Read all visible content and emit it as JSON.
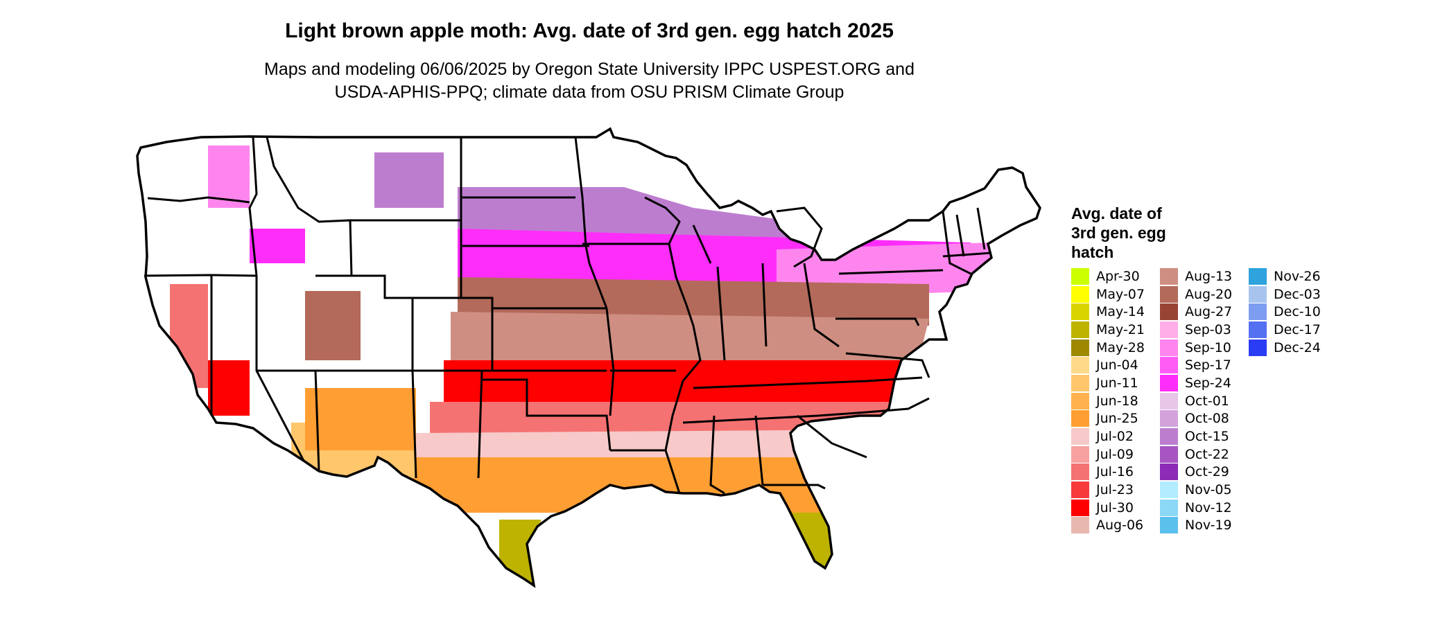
{
  "title": "Light brown apple moth: Avg. date of 3rd gen. egg hatch 2025",
  "subtitle": [
    "Maps and modeling 06/06/2025 by Oregon State University IPPC USPEST.ORG and",
    "USDA-APHIS-PPQ; climate data from OSU PRISM Climate Group"
  ],
  "legend": {
    "title": [
      "Avg. date of",
      "3rd gen. egg",
      "hatch"
    ],
    "items": [
      {
        "label": "Apr-30",
        "color": "#ccff00"
      },
      {
        "label": "May-07",
        "color": "#ffff00"
      },
      {
        "label": "May-14",
        "color": "#d9d400"
      },
      {
        "label": "May-21",
        "color": "#bdb300"
      },
      {
        "label": "May-28",
        "color": "#9e8800"
      },
      {
        "label": "Jun-04",
        "color": "#ffd98a"
      },
      {
        "label": "Jun-11",
        "color": "#ffc66b"
      },
      {
        "label": "Jun-18",
        "color": "#ffb24d"
      },
      {
        "label": "Jun-25",
        "color": "#ff9e33"
      },
      {
        "label": "Jul-02",
        "color": "#f7c9c9"
      },
      {
        "label": "Jul-09",
        "color": "#f7a1a1"
      },
      {
        "label": "Jul-16",
        "color": "#f57272"
      },
      {
        "label": "Jul-23",
        "color": "#f73b3b"
      },
      {
        "label": "Jul-30",
        "color": "#ff0000"
      },
      {
        "label": "Aug-06",
        "color": "#e8b8b0"
      },
      {
        "label": "Aug-13",
        "color": "#cf8e82"
      },
      {
        "label": "Aug-20",
        "color": "#b36a5a"
      },
      {
        "label": "Aug-27",
        "color": "#984435"
      },
      {
        "label": "Sep-03",
        "color": "#ffaee8"
      },
      {
        "label": "Sep-10",
        "color": "#ff85ee"
      },
      {
        "label": "Sep-17",
        "color": "#ff5cf5"
      },
      {
        "label": "Sep-24",
        "color": "#ff2dfa"
      },
      {
        "label": "Oct-01",
        "color": "#e7c6e8"
      },
      {
        "label": "Oct-08",
        "color": "#d3a2db"
      },
      {
        "label": "Oct-15",
        "color": "#bd7dcf"
      },
      {
        "label": "Oct-22",
        "color": "#a655c2"
      },
      {
        "label": "Oct-29",
        "color": "#8c2bb5"
      },
      {
        "label": "Nov-05",
        "color": "#b3ecff"
      },
      {
        "label": "Nov-12",
        "color": "#8ad8f5"
      },
      {
        "label": "Nov-19",
        "color": "#5cc0ec"
      },
      {
        "label": "Nov-26",
        "color": "#2ea3dd"
      },
      {
        "label": "Dec-03",
        "color": "#a6c4ee"
      },
      {
        "label": "Dec-10",
        "color": "#7d9ef0"
      },
      {
        "label": "Dec-17",
        "color": "#5670f2"
      },
      {
        "label": "Dec-24",
        "color": "#2b3cf5"
      }
    ]
  },
  "map": {
    "bands": [
      {
        "label": "Sep-24",
        "color": "#ff2dfa"
      },
      {
        "label": "Oct-15",
        "color": "#bd7dcf"
      },
      {
        "label": "Sep-10",
        "color": "#ff85ee"
      },
      {
        "label": "Aug-20",
        "color": "#b36a5a"
      },
      {
        "label": "Aug-13",
        "color": "#cf8e82"
      },
      {
        "label": "Jul-30",
        "color": "#ff0000"
      },
      {
        "label": "Jul-16",
        "color": "#f57272"
      },
      {
        "label": "Jul-02",
        "color": "#f7c9c9"
      },
      {
        "label": "Jun-25",
        "color": "#ff9e33"
      },
      {
        "label": "Jun-11",
        "color": "#ffc66b"
      },
      {
        "label": "May-21",
        "color": "#bdb300"
      }
    ]
  }
}
